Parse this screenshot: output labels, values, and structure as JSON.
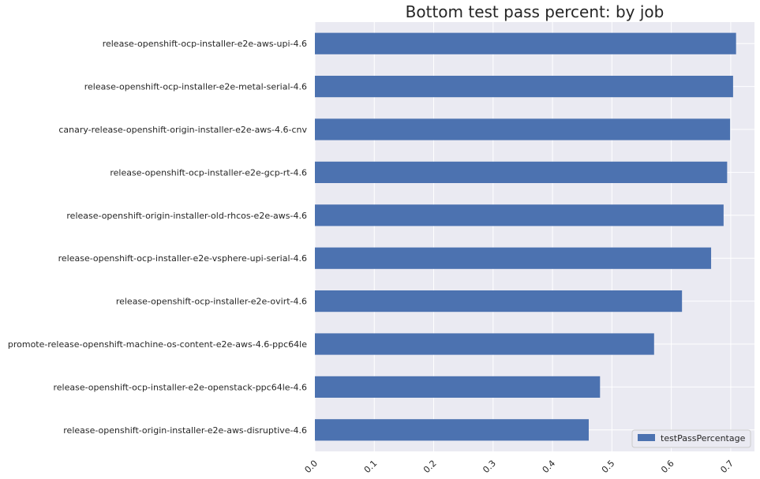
{
  "chart_data": {
    "type": "bar",
    "orientation": "horizontal",
    "title": "Bottom test pass percent: by job",
    "xlabel": "",
    "ylabel": "",
    "xlim": [
      0.0,
      0.74
    ],
    "xticks": [
      "0.0",
      "0.1",
      "0.2",
      "0.3",
      "0.4",
      "0.5",
      "0.6",
      "0.7"
    ],
    "grid": true,
    "legend_position": "bottom-right",
    "bar_color": "#4c72b0",
    "background_color": "#eaeaf2",
    "categories": [
      "release-openshift-ocp-installer-e2e-aws-upi-4.6",
      "release-openshift-ocp-installer-e2e-metal-serial-4.6",
      "canary-release-openshift-origin-installer-e2e-aws-4.6-cnv",
      "release-openshift-ocp-installer-e2e-gcp-rt-4.6",
      "release-openshift-origin-installer-old-rhcos-e2e-aws-4.6",
      "release-openshift-ocp-installer-e2e-vsphere-upi-serial-4.6",
      "release-openshift-ocp-installer-e2e-ovirt-4.6",
      "promote-release-openshift-machine-os-content-e2e-aws-4.6-ppc64le",
      "release-openshift-ocp-installer-e2e-openstack-ppc64le-4.6",
      "release-openshift-origin-installer-e2e-aws-disruptive-4.6"
    ],
    "series": [
      {
        "name": "testPassPercentage",
        "values": [
          0.709,
          0.704,
          0.699,
          0.694,
          0.688,
          0.667,
          0.618,
          0.571,
          0.48,
          0.461
        ]
      }
    ]
  }
}
